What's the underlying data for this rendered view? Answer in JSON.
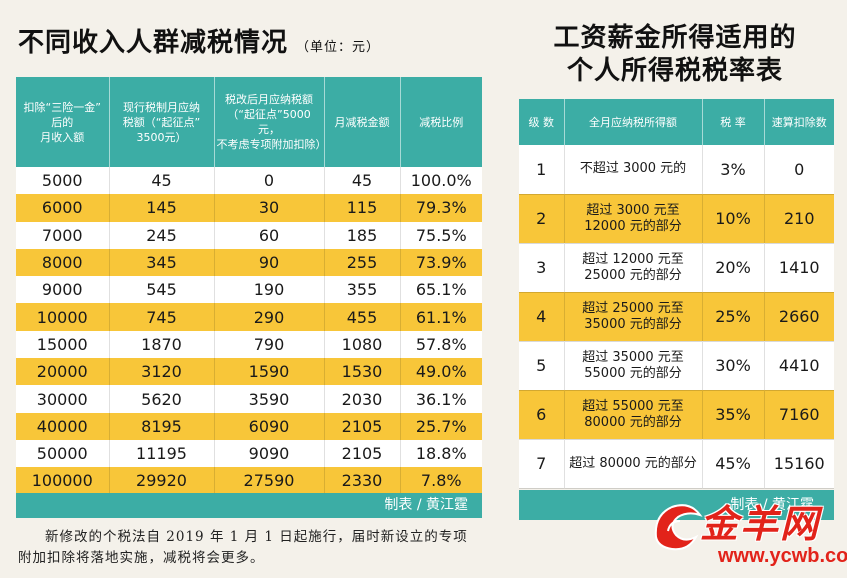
{
  "left": {
    "title": "不同收入人群减税情况",
    "unit": "（单位：元）",
    "headers": [
      [
        "扣除“三险一金”",
        "后的",
        "月收入额"
      ],
      [
        "现行税制月应纳",
        "税额（“起征点”",
        "3500元）"
      ],
      [
        "税改后月应纳税额",
        "（“起征点”5000元，",
        "不考虑专项附加扣除）"
      ],
      [
        "月减税金额"
      ],
      [
        "减税比例"
      ]
    ],
    "rows": [
      [
        "5000",
        "45",
        "0",
        "45",
        "100.0%"
      ],
      [
        "6000",
        "145",
        "30",
        "115",
        "79.3%"
      ],
      [
        "7000",
        "245",
        "60",
        "185",
        "75.5%"
      ],
      [
        "8000",
        "345",
        "90",
        "255",
        "73.9%"
      ],
      [
        "9000",
        "545",
        "190",
        "355",
        "65.1%"
      ],
      [
        "10000",
        "745",
        "290",
        "455",
        "61.1%"
      ],
      [
        "15000",
        "1870",
        "790",
        "1080",
        "57.8%"
      ],
      [
        "20000",
        "3120",
        "1590",
        "1530",
        "49.0%"
      ],
      [
        "30000",
        "5620",
        "3590",
        "2030",
        "36.1%"
      ],
      [
        "40000",
        "8195",
        "6090",
        "2105",
        "25.7%"
      ],
      [
        "50000",
        "11195",
        "9090",
        "2105",
        "18.8%"
      ],
      [
        "100000",
        "29920",
        "27590",
        "2330",
        "7.8%"
      ]
    ],
    "footer": "制表 / 黄江霆",
    "note": "新修改的个税法自 2019 年 1 月 1 日起施行，届时新设立的专项附加扣除将落地实施，减税将会更多。"
  },
  "right": {
    "title_line1": "工资薪金所得适用的",
    "title_line2": "个人所得税税率表",
    "headers": [
      "级 数",
      "全月应纳税所得额",
      "税 率",
      "速算扣除数"
    ],
    "rows": [
      {
        "level": "1",
        "range": [
          "不超过 3000 元的"
        ],
        "rate": "3%",
        "deduction": "0"
      },
      {
        "level": "2",
        "range": [
          "超过 3000 元至",
          "12000 元的部分"
        ],
        "rate": "10%",
        "deduction": "210"
      },
      {
        "level": "3",
        "range": [
          "超过 12000 元至",
          "25000 元的部分"
        ],
        "rate": "20%",
        "deduction": "1410"
      },
      {
        "level": "4",
        "range": [
          "超过 25000 元至",
          "35000 元的部分"
        ],
        "rate": "25%",
        "deduction": "2660"
      },
      {
        "level": "5",
        "range": [
          "超过 35000 元至",
          "55000 元的部分"
        ],
        "rate": "30%",
        "deduction": "4410"
      },
      {
        "level": "6",
        "range": [
          "超过 55000 元至",
          "80000 元的部分"
        ],
        "rate": "35%",
        "deduction": "7160"
      },
      {
        "level": "7",
        "range": [
          "超过 80000 元的部分"
        ],
        "rate": "45%",
        "deduction": "15160"
      }
    ],
    "footer": "制表 / 黄江霆"
  },
  "watermark": {
    "text": "金羊网",
    "url": "www.ycwb.com"
  },
  "colors": {
    "header_teal": "#3cada5",
    "row_yellow": "#f8c639",
    "row_white": "#ffffff",
    "background": "#f4f1ea",
    "watermark_red": "#e2231a"
  }
}
